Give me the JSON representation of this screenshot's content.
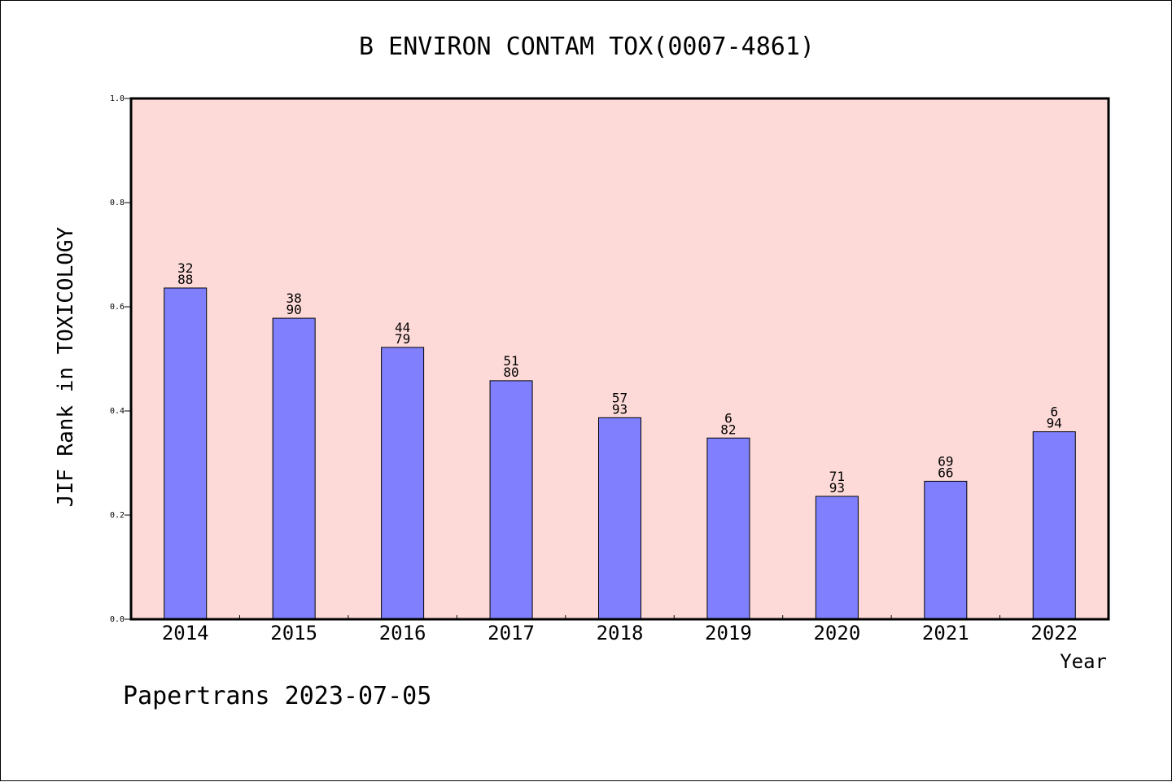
{
  "chart_data": {
    "type": "bar",
    "title": "B ENVIRON CONTAM TOX(0007-4861)",
    "xlabel": "Year",
    "ylabel": "JIF Rank in TOXICOLOGY",
    "categories": [
      "2014",
      "2015",
      "2016",
      "2017",
      "2018",
      "2019",
      "2020",
      "2021",
      "2022"
    ],
    "values": [
      0.636,
      0.578,
      0.522,
      0.458,
      0.387,
      0.348,
      0.236,
      0.265,
      0.36
    ],
    "bar_labels": [
      [
        "32",
        "88"
      ],
      [
        "38",
        "90"
      ],
      [
        "44",
        "79"
      ],
      [
        "51",
        "80"
      ],
      [
        "57",
        "93"
      ],
      [
        "6",
        "82"
      ],
      [
        "71",
        "93"
      ],
      [
        "69",
        "66"
      ],
      [
        "6",
        "94"
      ]
    ],
    "ylim": [
      0,
      1.0
    ],
    "yticks": [
      "0.0",
      "0.2",
      "0.4",
      "0.6",
      "0.8",
      "1.0"
    ],
    "grid": false,
    "colors": {
      "plot_background": "#fddad7",
      "bar_fill": "#8080ff",
      "bar_stroke": "#000000"
    }
  },
  "footer": {
    "text": "Papertrans 2023-07-05"
  }
}
